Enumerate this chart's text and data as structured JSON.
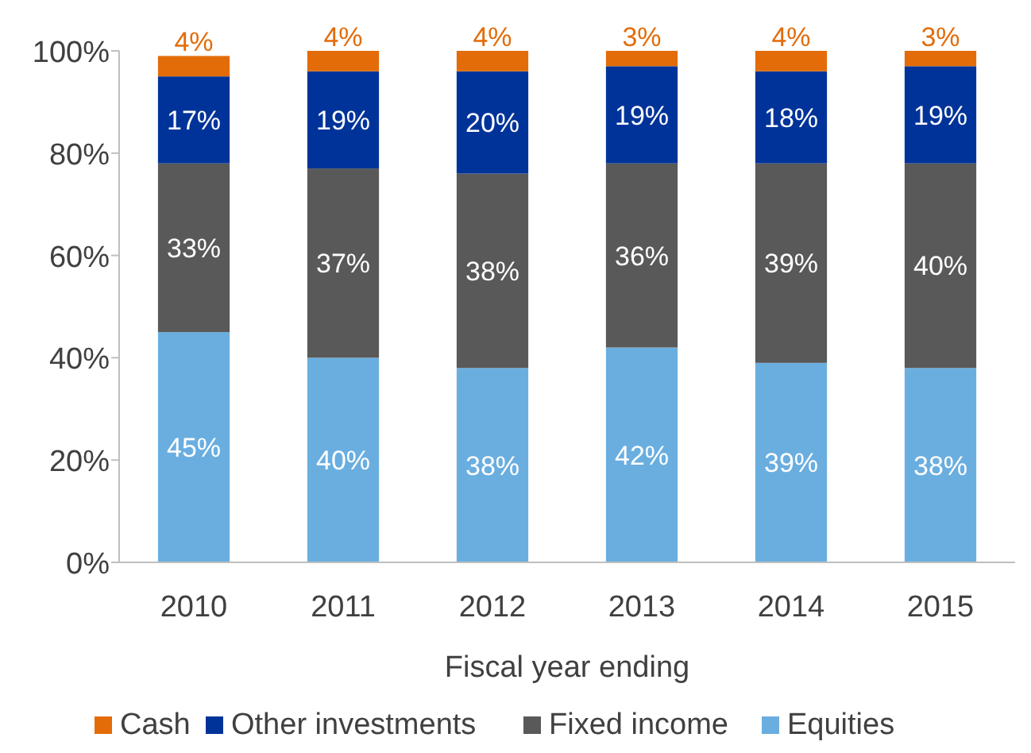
{
  "chart_data": {
    "type": "bar",
    "stacked": true,
    "xlabel": "Fiscal year ending",
    "categories": [
      "2010",
      "2011",
      "2012",
      "2013",
      "2014",
      "2015"
    ],
    "series": [
      {
        "name": "Equities",
        "color": "#6aaee0",
        "values": [
          45,
          40,
          38,
          42,
          39,
          38
        ],
        "value_labels": [
          "45%",
          "40%",
          "38%",
          "42%",
          "39%",
          "38%"
        ]
      },
      {
        "name": "Fixed income",
        "color": "#595959",
        "values": [
          33,
          37,
          38,
          36,
          39,
          40
        ],
        "value_labels": [
          "33%",
          "37%",
          "38%",
          "36%",
          "39%",
          "40%"
        ]
      },
      {
        "name": "Other investments",
        "color": "#003399",
        "values": [
          17,
          19,
          20,
          19,
          18,
          19
        ],
        "value_labels": [
          "17%",
          "19%",
          "20%",
          "19%",
          "18%",
          "19%"
        ]
      },
      {
        "name": "Cash",
        "color": "#e36c09",
        "values": [
          4,
          4,
          4,
          3,
          4,
          3
        ],
        "value_labels": [
          "4%",
          "4%",
          "4%",
          "3%",
          "4%",
          "3%"
        ]
      }
    ],
    "ylim": [
      0,
      100
    ],
    "yticks": [
      {
        "value": 0,
        "label": "0%"
      },
      {
        "value": 20,
        "label": "20%"
      },
      {
        "value": 40,
        "label": "40%"
      },
      {
        "value": 60,
        "label": "60%"
      },
      {
        "value": 80,
        "label": "80%"
      },
      {
        "value": 100,
        "label": "100%"
      }
    ],
    "grid": false,
    "legend": "bottom"
  }
}
